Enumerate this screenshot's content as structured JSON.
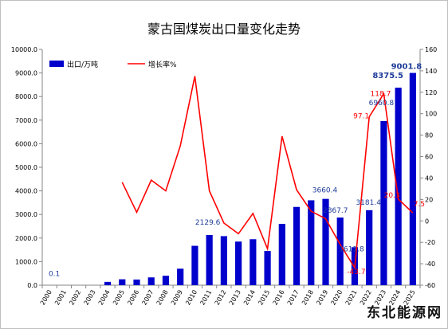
{
  "chart_data": {
    "type": "bar",
    "title": "蒙古国煤炭出口量变化走势",
    "categories": [
      "2000",
      "2001",
      "2002",
      "2003",
      "2004",
      "2005",
      "2006",
      "2007",
      "2008",
      "2009",
      "2010",
      "2011",
      "2012",
      "2013",
      "2014",
      "2015",
      "2016",
      "2017",
      "2018",
      "2019",
      "2020",
      "2021",
      "2022",
      "2023",
      "2024",
      "2025"
    ],
    "series": [
      {
        "name": "出口/万吨",
        "kind": "bar",
        "axis": "left",
        "color": "#0000cc",
        "values": [
          0.1,
          0,
          0,
          0,
          140,
          250,
          240,
          330,
          400,
          700,
          1670,
          2129.6,
          2080,
          1850,
          1950,
          1450,
          2600,
          3320,
          3600,
          3660.4,
          2867.7,
          1611.8,
          3181.4,
          6960.8,
          8375.5,
          9001.8
        ]
      },
      {
        "name": "增长率%",
        "kind": "line",
        "axis": "right",
        "color": "#ff0000",
        "values": [
          null,
          null,
          null,
          null,
          null,
          36,
          8,
          38,
          28,
          70,
          135,
          28,
          -2,
          -12,
          7,
          -26,
          79,
          29,
          9,
          2,
          -22,
          -43.7,
          97.1,
          118.7,
          20.3,
          7.5
        ]
      }
    ],
    "bar_labels": [
      {
        "index": 0,
        "text": "0.1"
      },
      {
        "index": 11,
        "text": "2129.6"
      },
      {
        "index": 19,
        "text": "3660.4"
      },
      {
        "index": 20,
        "text": "2867.7"
      },
      {
        "index": 21,
        "text": "1611.8"
      },
      {
        "index": 22,
        "text": "3181.4"
      },
      {
        "index": 23,
        "text": "6960.8"
      },
      {
        "index": 24,
        "text": "8375.5"
      },
      {
        "index": 25,
        "text": "9001.8"
      }
    ],
    "line_labels": [
      {
        "index": 21,
        "text": "-43.7"
      },
      {
        "index": 22,
        "text": "97.1"
      },
      {
        "index": 23,
        "text": "118.7"
      },
      {
        "index": 24,
        "text": "20.3"
      },
      {
        "index": 25,
        "text": "7.5"
      }
    ],
    "y_left": {
      "min": 0,
      "max": 10000,
      "step": 1000,
      "tick_decimals": 1
    },
    "y_right": {
      "min": -60,
      "max": 160,
      "step": 20
    },
    "legend_position": "top-left",
    "grid": false
  },
  "watermark": "东北能源网"
}
